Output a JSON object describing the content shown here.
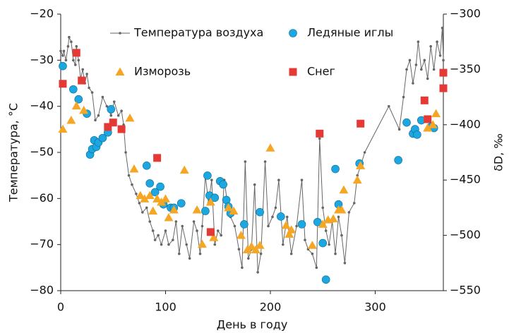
{
  "chart_data": {
    "type": "line",
    "xlabel": "День в году",
    "ylabel": "Температура, °С",
    "y2label": "δD, ‰",
    "xlim": [
      0,
      365
    ],
    "xticks": [
      0,
      100,
      200,
      300
    ],
    "ylim": [
      -80,
      -20
    ],
    "yticks": [
      {
        "value": -80,
        "label": "−80"
      },
      {
        "value": -70,
        "label": "−70"
      },
      {
        "value": -60,
        "label": "−60"
      },
      {
        "value": -50,
        "label": "−50"
      },
      {
        "value": -40,
        "label": "−40"
      },
      {
        "value": -30,
        "label": "−30"
      },
      {
        "value": -20,
        "label": "−20"
      }
    ],
    "y2lim": [
      -550,
      -300
    ],
    "y2ticks": [
      {
        "value": -550,
        "label": "−550"
      },
      {
        "value": -500,
        "label": "−500"
      },
      {
        "value": -450,
        "label": "−450"
      },
      {
        "value": -400,
        "label": "−400"
      },
      {
        "value": -350,
        "label": "−350"
      },
      {
        "value": -300,
        "label": "−300"
      }
    ],
    "legend": "top",
    "series": [
      {
        "name": "Температура воздуха",
        "color": "#666666",
        "type": "line",
        "marker": "dot",
        "x": [
          0,
          2,
          3,
          5,
          7,
          8,
          10,
          12,
          14,
          15,
          17,
          19,
          21,
          23,
          25,
          27,
          30,
          33,
          36,
          40,
          44,
          48,
          51,
          55,
          58,
          60,
          62,
          65,
          68,
          72,
          75,
          78,
          82,
          85,
          88,
          90,
          93,
          96,
          100,
          103,
          107,
          110,
          113,
          116,
          120,
          123,
          127,
          130,
          133,
          135,
          138,
          141,
          144,
          147,
          150,
          153,
          156,
          159,
          162,
          166,
          170,
          173,
          176,
          179,
          182,
          185,
          188,
          191,
          195,
          198,
          202,
          205,
          208,
          212,
          216,
          220,
          225,
          230,
          233,
          236,
          240,
          244,
          247,
          250,
          253,
          256,
          259,
          262,
          265,
          268,
          271,
          275,
          280,
          283,
          286,
          290,
          313,
          323,
          327,
          330,
          333,
          336,
          339,
          341,
          344,
          347,
          350,
          353,
          356,
          359,
          362,
          364,
          365
        ],
        "values": [
          -28,
          -29,
          -28,
          -30,
          -27,
          -25,
          -26,
          -30,
          -31,
          -27,
          -30,
          -34,
          -32,
          -35,
          -33,
          -36,
          -37,
          -43,
          -42,
          -38,
          -40,
          -42,
          -39,
          -42,
          -41,
          -44,
          -50,
          -55,
          -57,
          -59,
          -61,
          -63,
          -62,
          -65,
          -67,
          -69,
          -68,
          -70,
          -67,
          -70,
          -69,
          -65,
          -72,
          -66,
          -70,
          -73,
          -65,
          -67,
          -72,
          -66,
          -55,
          -61,
          -56,
          -70,
          -67,
          -68,
          -56,
          -61,
          -64,
          -66,
          -71,
          -75,
          -52,
          -73,
          -71,
          -57,
          -76,
          -72,
          -52,
          -66,
          -64,
          -62,
          -56,
          -70,
          -64,
          -72,
          -66,
          -56,
          -69,
          -71,
          -72,
          -75,
          -47,
          -62,
          -67,
          -70,
          -65,
          -72,
          -64,
          -68,
          -74,
          -63,
          -61,
          -55,
          -53,
          -50,
          -40,
          -45,
          -38,
          -32,
          -30,
          -35,
          -31,
          -26,
          -32,
          -30,
          -34,
          -27,
          -32,
          -26,
          -29,
          -23,
          -30
        ]
      },
      {
        "name": "Ледяные иглы",
        "color": "#1ca7e0",
        "type": "scatter",
        "marker": "circle",
        "axis": "y2",
        "x": [
          2,
          12,
          17,
          25,
          28,
          30,
          32,
          34,
          36,
          40,
          45,
          48,
          82,
          85,
          90,
          95,
          98,
          105,
          108,
          115,
          138,
          140,
          142,
          147,
          152,
          155,
          158,
          160,
          162,
          175,
          190,
          210,
          230,
          245,
          250,
          253,
          262,
          265,
          285,
          322,
          330,
          336,
          338,
          340,
          344,
          353,
          356
        ],
        "values": [
          -347,
          -368,
          -377,
          -390,
          -427,
          -422,
          -414,
          -420,
          -416,
          -412,
          -407,
          -386,
          -437,
          -453,
          -461,
          -456,
          -472,
          -475,
          -475,
          -471,
          -478,
          -446,
          -464,
          -466,
          -451,
          -454,
          -468,
          -474,
          -480,
          -490,
          -479,
          -483,
          -490,
          -488,
          -507,
          -540,
          -440,
          -472,
          -435,
          -432,
          -398,
          -408,
          -404,
          -409,
          -396,
          -402,
          -403
        ]
      },
      {
        "name": "Изморозь",
        "color": "#f5a623",
        "type": "scatter",
        "marker": "triangle",
        "axis": "y2",
        "x": [
          2,
          10,
          15,
          22,
          66,
          70,
          76,
          80,
          85,
          88,
          92,
          96,
          100,
          103,
          108,
          118,
          130,
          135,
          143,
          146,
          160,
          165,
          172,
          178,
          182,
          186,
          190,
          200,
          215,
          218,
          220,
          240,
          250,
          255,
          260,
          265,
          268,
          270,
          283,
          286,
          350,
          355,
          358
        ],
        "values": [
          -404,
          -396,
          -383,
          -387,
          -394,
          -440,
          -464,
          -467,
          -464,
          -478,
          -467,
          -470,
          -467,
          -484,
          -477,
          -441,
          -477,
          -508,
          -470,
          -502,
          -475,
          -478,
          -500,
          -513,
          -510,
          -513,
          -509,
          -421,
          -491,
          -499,
          -495,
          -509,
          -490,
          -486,
          -485,
          -477,
          -477,
          -459,
          -450,
          -437,
          -403,
          -400,
          -390
        ]
      },
      {
        "name": "Снег",
        "color": "#e53935",
        "type": "scatter",
        "marker": "square",
        "axis": "y2",
        "x": [
          2,
          15,
          20,
          45,
          50,
          58,
          92,
          143,
          247,
          286,
          347,
          350,
          365,
          365
        ],
        "values": [
          -363,
          -335,
          -360,
          -402,
          -398,
          -404,
          -430,
          -497,
          -408,
          -399,
          -378,
          -395,
          -353,
          -367
        ]
      }
    ]
  }
}
